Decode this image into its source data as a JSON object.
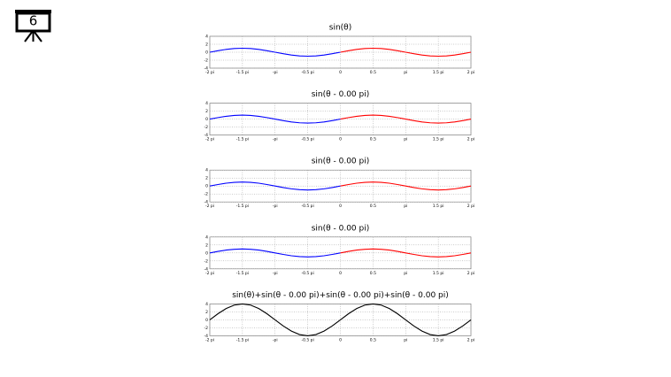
{
  "slide_number": "6",
  "chart_data": [
    {
      "type": "line",
      "title": "sin(θ)",
      "x": [
        -2,
        -1.875,
        -1.75,
        -1.625,
        -1.5,
        -1.375,
        -1.25,
        -1.125,
        -1,
        -0.875,
        -0.75,
        -0.625,
        -0.5,
        -0.375,
        -0.25,
        -0.125,
        0,
        0.125,
        0.25,
        0.375,
        0.5,
        0.625,
        0.75,
        0.875,
        1,
        1.125,
        1.25,
        1.375,
        1.5,
        1.625,
        1.75,
        1.875,
        2
      ],
      "series": [
        {
          "color": "#0000ff",
          "values": [
            0,
            0.38,
            0.71,
            0.92,
            1,
            0.92,
            0.71,
            0.38,
            0,
            -0.38,
            -0.71,
            -0.92,
            -1,
            -0.92,
            -0.71,
            -0.38,
            0,
            null,
            null,
            null,
            null,
            null,
            null,
            null,
            null,
            null,
            null,
            null,
            null,
            null,
            null,
            null,
            null
          ]
        },
        {
          "color": "#ff0000",
          "values": [
            null,
            null,
            null,
            null,
            null,
            null,
            null,
            null,
            null,
            null,
            null,
            null,
            null,
            null,
            null,
            null,
            0,
            0.38,
            0.71,
            0.92,
            1,
            0.92,
            0.71,
            0.38,
            0,
            -0.38,
            -0.71,
            -0.92,
            -1,
            -0.92,
            -0.71,
            -0.38,
            0
          ]
        }
      ],
      "xlim": [
        -2,
        2
      ],
      "xticks": [
        {
          "value": -2,
          "label": "-2 pi"
        },
        {
          "value": -1.5,
          "label": "-1.5 pi"
        },
        {
          "value": -1,
          "label": "-pi"
        },
        {
          "value": -0.5,
          "label": "-0.5 pi"
        },
        0,
        0.5,
        {
          "value": 1,
          "label": "pi"
        },
        {
          "value": 1.5,
          "label": "1.5 pi"
        },
        {
          "value": 2,
          "label": "2 pi"
        }
      ],
      "ylim": [
        -4,
        4
      ],
      "yticks": [
        -4,
        -2,
        0,
        2,
        4
      ],
      "grid": true
    },
    {
      "type": "line",
      "title": "sin(θ - 0.00 pi)",
      "x": [
        -2,
        -1.875,
        -1.75,
        -1.625,
        -1.5,
        -1.375,
        -1.25,
        -1.125,
        -1,
        -0.875,
        -0.75,
        -0.625,
        -0.5,
        -0.375,
        -0.25,
        -0.125,
        0,
        0.125,
        0.25,
        0.375,
        0.5,
        0.625,
        0.75,
        0.875,
        1,
        1.125,
        1.25,
        1.375,
        1.5,
        1.625,
        1.75,
        1.875,
        2
      ],
      "series": [
        {
          "color": "#0000ff",
          "values": [
            0,
            0.38,
            0.71,
            0.92,
            1,
            0.92,
            0.71,
            0.38,
            0,
            -0.38,
            -0.71,
            -0.92,
            -1,
            -0.92,
            -0.71,
            -0.38,
            0,
            null,
            null,
            null,
            null,
            null,
            null,
            null,
            null,
            null,
            null,
            null,
            null,
            null,
            null,
            null,
            null
          ]
        },
        {
          "color": "#ff0000",
          "values": [
            null,
            null,
            null,
            null,
            null,
            null,
            null,
            null,
            null,
            null,
            null,
            null,
            null,
            null,
            null,
            null,
            0,
            0.38,
            0.71,
            0.92,
            1,
            0.92,
            0.71,
            0.38,
            0,
            -0.38,
            -0.71,
            -0.92,
            -1,
            -0.92,
            -0.71,
            -0.38,
            0
          ]
        }
      ],
      "xlim": [
        -2,
        2
      ],
      "xticks": [
        {
          "value": -2,
          "label": "-2 pi"
        },
        {
          "value": -1.5,
          "label": "-1.5 pi"
        },
        {
          "value": -1,
          "label": "-pi"
        },
        {
          "value": -0.5,
          "label": "-0.5 pi"
        },
        0,
        0.5,
        {
          "value": 1,
          "label": "pi"
        },
        {
          "value": 1.5,
          "label": "1.5 pi"
        },
        {
          "value": 2,
          "label": "2 pi"
        }
      ],
      "ylim": [
        -4,
        4
      ],
      "yticks": [
        -4,
        -2,
        0,
        2,
        4
      ],
      "grid": true
    },
    {
      "type": "line",
      "title": "sin(θ - 0.00 pi)",
      "x": [
        -2,
        -1.875,
        -1.75,
        -1.625,
        -1.5,
        -1.375,
        -1.25,
        -1.125,
        -1,
        -0.875,
        -0.75,
        -0.625,
        -0.5,
        -0.375,
        -0.25,
        -0.125,
        0,
        0.125,
        0.25,
        0.375,
        0.5,
        0.625,
        0.75,
        0.875,
        1,
        1.125,
        1.25,
        1.375,
        1.5,
        1.625,
        1.75,
        1.875,
        2
      ],
      "series": [
        {
          "color": "#0000ff",
          "values": [
            0,
            0.38,
            0.71,
            0.92,
            1,
            0.92,
            0.71,
            0.38,
            0,
            -0.38,
            -0.71,
            -0.92,
            -1,
            -0.92,
            -0.71,
            -0.38,
            0,
            null,
            null,
            null,
            null,
            null,
            null,
            null,
            null,
            null,
            null,
            null,
            null,
            null,
            null,
            null,
            null
          ]
        },
        {
          "color": "#ff0000",
          "values": [
            null,
            null,
            null,
            null,
            null,
            null,
            null,
            null,
            null,
            null,
            null,
            null,
            null,
            null,
            null,
            null,
            0,
            0.38,
            0.71,
            0.92,
            1,
            0.92,
            0.71,
            0.38,
            0,
            -0.38,
            -0.71,
            -0.92,
            -1,
            -0.92,
            -0.71,
            -0.38,
            0
          ]
        }
      ],
      "xlim": [
        -2,
        2
      ],
      "xticks": [
        {
          "value": -2,
          "label": "-2 pi"
        },
        {
          "value": -1.5,
          "label": "-1.5 pi"
        },
        {
          "value": -1,
          "label": "-pi"
        },
        {
          "value": -0.5,
          "label": "-0.5 pi"
        },
        0,
        0.5,
        {
          "value": 1,
          "label": "pi"
        },
        {
          "value": 1.5,
          "label": "1.5 pi"
        },
        {
          "value": 2,
          "label": "2 pi"
        }
      ],
      "ylim": [
        -4,
        4
      ],
      "yticks": [
        -4,
        -2,
        0,
        2,
        4
      ],
      "grid": true
    },
    {
      "type": "line",
      "title": "sin(θ - 0.00 pi)",
      "x": [
        -2,
        -1.875,
        -1.75,
        -1.625,
        -1.5,
        -1.375,
        -1.25,
        -1.125,
        -1,
        -0.875,
        -0.75,
        -0.625,
        -0.5,
        -0.375,
        -0.25,
        -0.125,
        0,
        0.125,
        0.25,
        0.375,
        0.5,
        0.625,
        0.75,
        0.875,
        1,
        1.125,
        1.25,
        1.375,
        1.5,
        1.625,
        1.75,
        1.875,
        2
      ],
      "series": [
        {
          "color": "#0000ff",
          "values": [
            0,
            0.38,
            0.71,
            0.92,
            1,
            0.92,
            0.71,
            0.38,
            0,
            -0.38,
            -0.71,
            -0.92,
            -1,
            -0.92,
            -0.71,
            -0.38,
            0,
            null,
            null,
            null,
            null,
            null,
            null,
            null,
            null,
            null,
            null,
            null,
            null,
            null,
            null,
            null,
            null
          ]
        },
        {
          "color": "#ff0000",
          "values": [
            null,
            null,
            null,
            null,
            null,
            null,
            null,
            null,
            null,
            null,
            null,
            null,
            null,
            null,
            null,
            null,
            0,
            0.38,
            0.71,
            0.92,
            1,
            0.92,
            0.71,
            0.38,
            0,
            -0.38,
            -0.71,
            -0.92,
            -1,
            -0.92,
            -0.71,
            -0.38,
            0
          ]
        }
      ],
      "xlim": [
        -2,
        2
      ],
      "xticks": [
        {
          "value": -2,
          "label": "-2 pi"
        },
        {
          "value": -1.5,
          "label": "-1.5 pi"
        },
        {
          "value": -1,
          "label": "-pi"
        },
        {
          "value": -0.5,
          "label": "-0.5 pi"
        },
        0,
        0.5,
        {
          "value": 1,
          "label": "pi"
        },
        {
          "value": 1.5,
          "label": "1.5 pi"
        },
        {
          "value": 2,
          "label": "2 pi"
        }
      ],
      "ylim": [
        -4,
        4
      ],
      "yticks": [
        -4,
        -2,
        0,
        2,
        4
      ],
      "grid": true
    },
    {
      "type": "line",
      "title": "sin(θ)+sin(θ - 0.00 pi)+sin(θ - 0.00 pi)+sin(θ - 0.00 pi)",
      "x": [
        -2,
        -1.875,
        -1.75,
        -1.625,
        -1.5,
        -1.375,
        -1.25,
        -1.125,
        -1,
        -0.875,
        -0.75,
        -0.625,
        -0.5,
        -0.375,
        -0.25,
        -0.125,
        0,
        0.125,
        0.25,
        0.375,
        0.5,
        0.625,
        0.75,
        0.875,
        1,
        1.125,
        1.25,
        1.375,
        1.5,
        1.625,
        1.75,
        1.875,
        2
      ],
      "series": [
        {
          "color": "#000000",
          "values": [
            0,
            1.53,
            2.83,
            3.7,
            4,
            3.7,
            2.83,
            1.53,
            0,
            -1.53,
            -2.83,
            -3.7,
            -4,
            -3.7,
            -2.83,
            -1.53,
            0,
            1.53,
            2.83,
            3.7,
            4,
            3.7,
            2.83,
            1.53,
            0,
            -1.53,
            -2.83,
            -3.7,
            -4,
            -3.7,
            -2.83,
            -1.53,
            0
          ]
        }
      ],
      "xlim": [
        -2,
        2
      ],
      "xticks": [
        {
          "value": -2,
          "label": "-2 pi"
        },
        {
          "value": -1.5,
          "label": "-1.5 pi"
        },
        {
          "value": -1,
          "label": "-pi"
        },
        {
          "value": -0.5,
          "label": "-0.5 pi"
        },
        0,
        0.5,
        {
          "value": 1,
          "label": "pi"
        },
        {
          "value": 1.5,
          "label": "1.5 pi"
        },
        {
          "value": 2,
          "label": "2 pi"
        }
      ],
      "ylim": [
        -4,
        4
      ],
      "yticks": [
        -4,
        -2,
        0,
        2,
        4
      ],
      "grid": true
    }
  ]
}
